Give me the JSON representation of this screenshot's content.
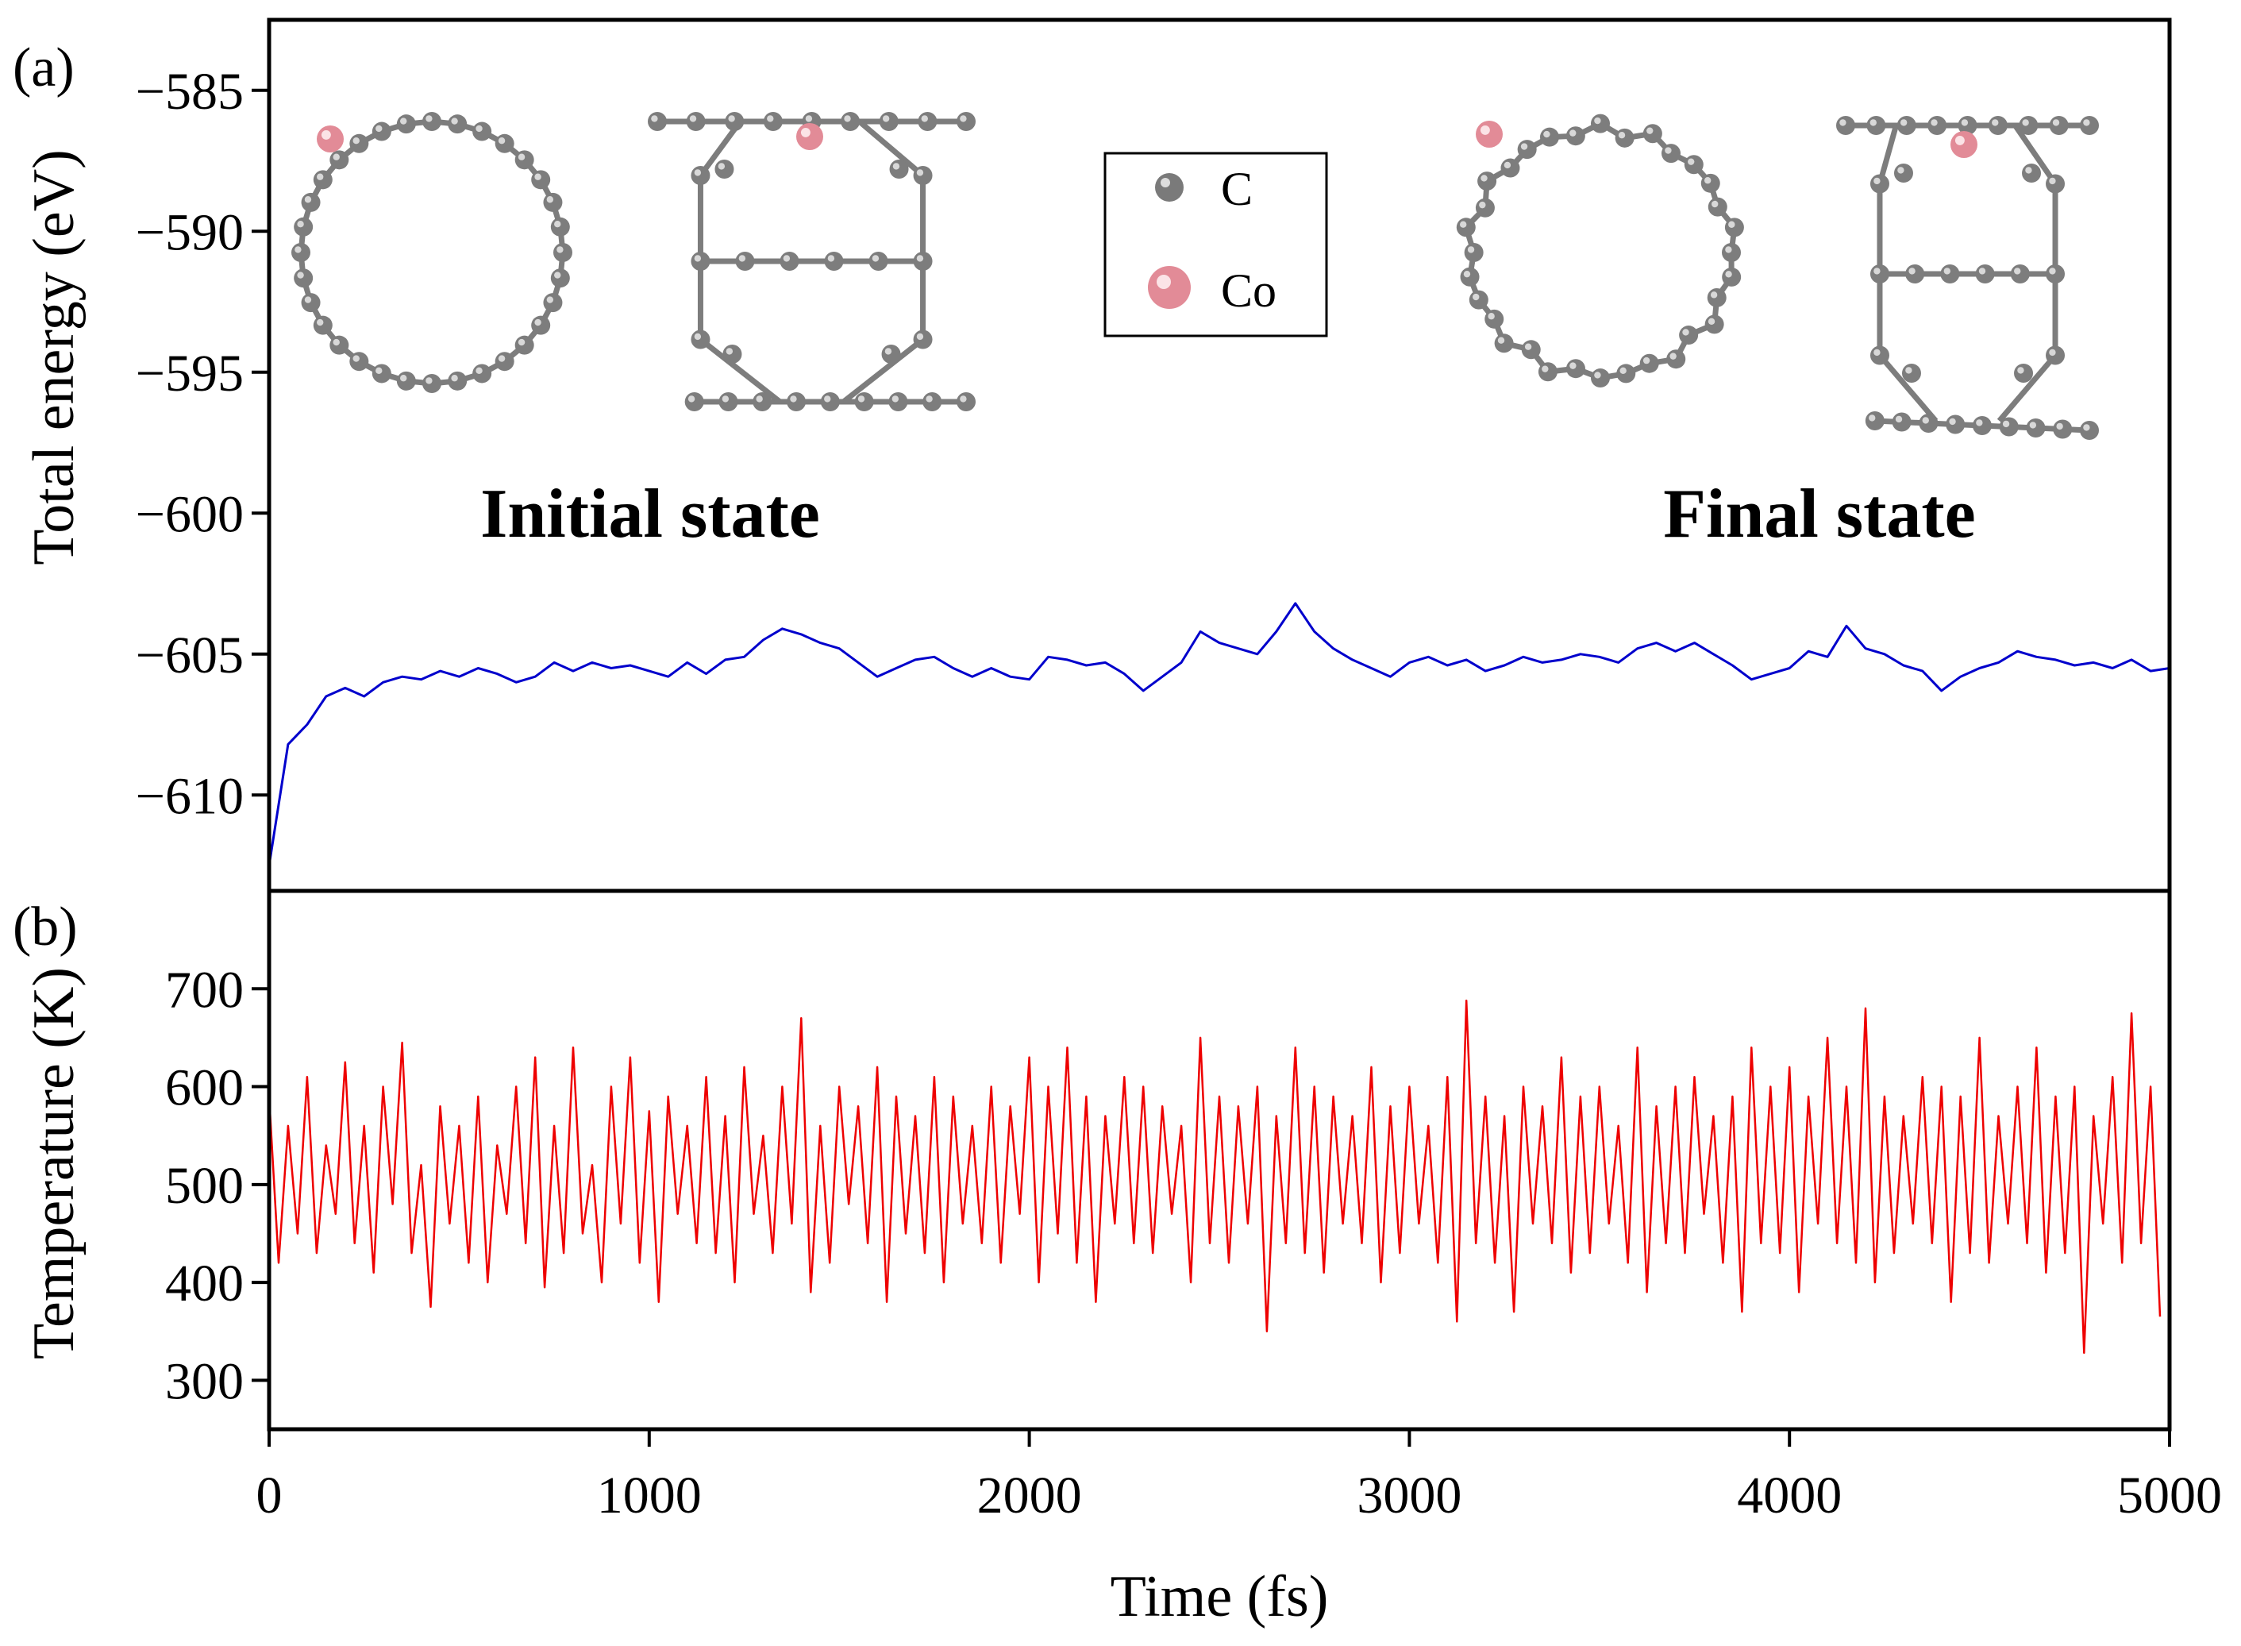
{
  "chart_data": [
    {
      "type": "line",
      "panel_label": "(a)",
      "ylabel": "Total energy (eV)",
      "xlabel": "Time (fs)",
      "xlim": [
        0,
        5000
      ],
      "ylim": [
        -613.4,
        -582.5
      ],
      "yticks": [
        -585,
        -590,
        -595,
        -600,
        -605,
        -610
      ],
      "ytick_labels": [
        "−585",
        "−590",
        "−595",
        "−600",
        "−605",
        "−610"
      ],
      "color": "#0000cc",
      "annotations": [
        "Initial state",
        "Final state"
      ],
      "legend": {
        "placement": "top-center",
        "entries": [
          {
            "label": "C",
            "color": "#808080"
          },
          {
            "label": "Co",
            "color": "#e8909a"
          }
        ]
      },
      "x_step": 50,
      "values": [
        -612.5,
        -608.2,
        -607.5,
        -606.5,
        -606.2,
        -606.5,
        -606.0,
        -605.8,
        -605.9,
        -605.6,
        -605.8,
        -605.5,
        -605.7,
        -606.0,
        -605.8,
        -605.3,
        -605.6,
        -605.3,
        -605.5,
        -605.4,
        -605.6,
        -605.8,
        -605.3,
        -605.7,
        -605.2,
        -605.1,
        -604.5,
        -604.1,
        -604.3,
        -604.6,
        -604.8,
        -605.3,
        -605.8,
        -605.5,
        -605.2,
        -605.1,
        -605.5,
        -605.8,
        -605.5,
        -605.8,
        -605.9,
        -605.1,
        -605.2,
        -605.4,
        -605.3,
        -605.7,
        -606.3,
        -605.8,
        -605.3,
        -604.2,
        -604.6,
        -604.8,
        -605.0,
        -604.2,
        -603.2,
        -604.2,
        -604.8,
        -605.2,
        -605.5,
        -605.8,
        -605.3,
        -605.1,
        -605.4,
        -605.2,
        -605.6,
        -605.4,
        -605.1,
        -605.3,
        -605.2,
        -605.0,
        -605.1,
        -605.3,
        -604.8,
        -604.6,
        -604.9,
        -604.6,
        -605.0,
        -605.4,
        -605.9,
        -605.7,
        -605.5,
        -604.9,
        -605.1,
        -604.0,
        -604.8,
        -605.0,
        -605.4,
        -605.6,
        -606.3,
        -605.8,
        -605.5,
        -605.3,
        -604.9,
        -605.1,
        -605.2,
        -605.4,
        -605.3,
        -605.5,
        -605.2,
        -605.6,
        -605.5
      ]
    },
    {
      "type": "line",
      "panel_label": "(b)",
      "ylabel": "Temperature (K)",
      "xlabel": "Time (fs)",
      "xlim": [
        0,
        5000
      ],
      "ylim": [
        250,
        800
      ],
      "yticks": [
        300,
        400,
        500,
        600,
        700
      ],
      "xticks": [
        0,
        1000,
        2000,
        3000,
        4000,
        5000
      ],
      "color": "#ee0000",
      "x_step": 25,
      "values": [
        590,
        420,
        560,
        450,
        610,
        430,
        540,
        470,
        625,
        440,
        560,
        410,
        600,
        480,
        645,
        430,
        520,
        375,
        580,
        460,
        560,
        420,
        590,
        400,
        540,
        470,
        600,
        440,
        630,
        395,
        560,
        430,
        640,
        450,
        520,
        400,
        600,
        460,
        630,
        420,
        575,
        380,
        590,
        470,
        560,
        440,
        610,
        430,
        570,
        400,
        620,
        470,
        550,
        430,
        600,
        460,
        670,
        390,
        560,
        420,
        600,
        480,
        580,
        440,
        620,
        380,
        590,
        450,
        570,
        430,
        610,
        400,
        590,
        460,
        560,
        440,
        600,
        420,
        580,
        470,
        630,
        400,
        600,
        450,
        640,
        420,
        590,
        380,
        570,
        460,
        610,
        440,
        600,
        430,
        580,
        470,
        560,
        400,
        650,
        440,
        590,
        420,
        580,
        460,
        600,
        350,
        570,
        440,
        640,
        430,
        600,
        410,
        590,
        460,
        570,
        440,
        620,
        400,
        580,
        430,
        600,
        460,
        560,
        420,
        610,
        360,
        688,
        440,
        590,
        420,
        570,
        370,
        600,
        460,
        580,
        440,
        630,
        410,
        590,
        430,
        600,
        460,
        560,
        420,
        640,
        390,
        580,
        440,
        600,
        430,
        610,
        470,
        570,
        420,
        590,
        370,
        640,
        440,
        600,
        430,
        620,
        390,
        590,
        460,
        650,
        440,
        600,
        420,
        680,
        400,
        590,
        430,
        570,
        460,
        610,
        440,
        600,
        380,
        590,
        430,
        650,
        420,
        570,
        460,
        600,
        440,
        640,
        410,
        590,
        430,
        600,
        328,
        570,
        460,
        610,
        420,
        675,
        440,
        600,
        365
      ]
    }
  ]
}
